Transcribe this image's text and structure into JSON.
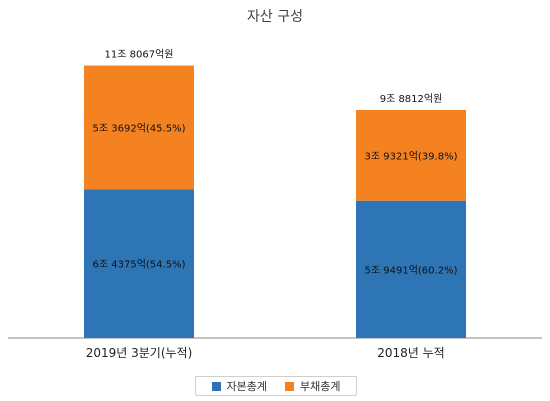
{
  "chart_data": {
    "type": "bar",
    "stacked": true,
    "title": "자산 구성",
    "categories": [
      "2019년 3분기(누적)",
      "2018년 누적"
    ],
    "series": [
      {
        "name": "자본총계",
        "color": "#2e75b6",
        "values": [
          64375,
          59491
        ],
        "labels": [
          "6조 4375억(54.5%)",
          "5조 9491억(60.2%)"
        ]
      },
      {
        "name": "부채총계",
        "color": "#f58220",
        "values": [
          53692,
          39321
        ],
        "labels": [
          "5조 3692억(45.5%)",
          "3조 9321억(39.8%)"
        ]
      }
    ],
    "totals": [
      118067,
      98812
    ],
    "total_labels": [
      "11조 8067억원",
      "9조 8812억원"
    ],
    "ylim": [
      0,
      130000
    ],
    "grid": false,
    "legend_position": "bottom"
  }
}
